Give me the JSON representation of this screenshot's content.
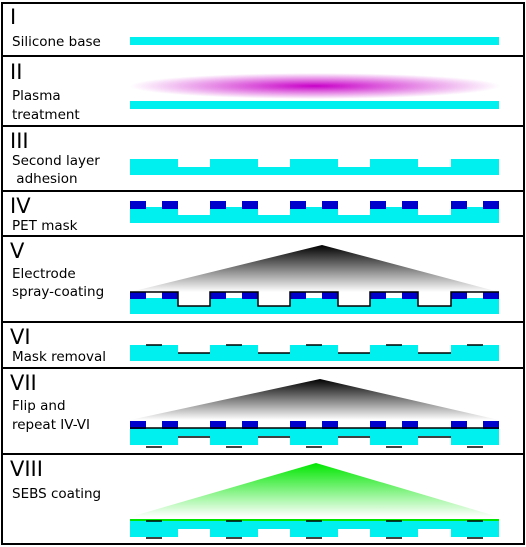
{
  "colors": {
    "base": "#00f0f0",
    "mask": "#0000cc",
    "electrode": "#000000",
    "plasma": "#c800c8",
    "sebs": "#00e600",
    "frame": "#000000"
  },
  "steps": [
    {
      "numeral": "I",
      "lines": [
        "Silicone base"
      ]
    },
    {
      "numeral": "II",
      "lines": [
        "Plasma",
        "treatment"
      ]
    },
    {
      "numeral": "III",
      "lines": [
        "Second layer",
        " adhesion"
      ]
    },
    {
      "numeral": "IV",
      "lines": [
        "PET mask"
      ]
    },
    {
      "numeral": "V",
      "lines": [
        "Electrode",
        "spray-coating"
      ]
    },
    {
      "numeral": "VI",
      "lines": [
        "Mask removal"
      ]
    },
    {
      "numeral": "VII",
      "lines": [
        "Flip and",
        "repeat IV-VI"
      ]
    },
    {
      "numeral": "VIII",
      "lines": [
        "SEBS coating"
      ]
    }
  ]
}
